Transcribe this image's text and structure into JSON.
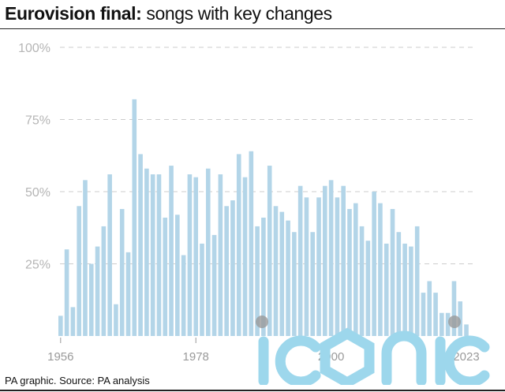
{
  "header": {
    "title_bold": "Eurovision final:",
    "title_rest": " songs with key changes"
  },
  "footer": {
    "source": "PA graphic. Source: PA analysis"
  },
  "colors": {
    "bar": "#b3d5e8",
    "grid": "#cccccc",
    "watermark": "#9dd7ec"
  },
  "chart_data": {
    "type": "bar",
    "title": "Eurovision final: songs with key changes",
    "xlabel": "",
    "ylabel": "",
    "ylim": [
      0,
      100
    ],
    "y_ticks": [
      "25%",
      "50%",
      "75%",
      "100%"
    ],
    "y_tick_values": [
      25,
      50,
      75,
      100
    ],
    "x_tick_labels": [
      "1956",
      "1978",
      "2000",
      "2023"
    ],
    "x_tick_values": [
      1956,
      1978,
      2000,
      2023
    ],
    "grid": true,
    "categories": [
      1956,
      1957,
      1958,
      1959,
      1960,
      1961,
      1962,
      1963,
      1964,
      1965,
      1966,
      1967,
      1968,
      1969,
      1970,
      1971,
      1972,
      1973,
      1974,
      1975,
      1976,
      1977,
      1978,
      1979,
      1980,
      1981,
      1982,
      1983,
      1984,
      1985,
      1986,
      1987,
      1988,
      1989,
      1990,
      1991,
      1992,
      1993,
      1994,
      1995,
      1996,
      1997,
      1998,
      1999,
      2000,
      2001,
      2002,
      2003,
      2004,
      2005,
      2006,
      2007,
      2008,
      2009,
      2010,
      2011,
      2012,
      2013,
      2014,
      2015,
      2016,
      2017,
      2018,
      2019,
      2021,
      2022,
      2023
    ],
    "values": [
      7,
      30,
      10,
      45,
      54,
      25,
      31,
      38,
      56,
      11,
      44,
      29,
      82,
      63,
      58,
      56,
      56,
      41,
      59,
      42,
      28,
      56,
      55,
      32,
      58,
      35,
      56,
      45,
      47,
      63,
      55,
      64,
      38,
      41,
      59,
      45,
      43,
      40,
      36,
      52,
      48,
      36,
      48,
      52,
      54,
      48,
      52,
      44,
      46,
      38,
      33,
      50,
      46,
      32,
      44,
      36,
      32,
      31,
      38,
      15,
      19,
      15,
      8,
      8,
      19,
      12,
      4
    ]
  }
}
